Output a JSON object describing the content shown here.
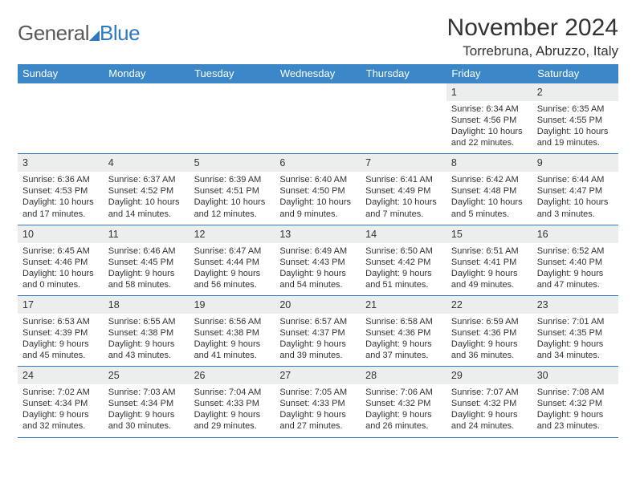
{
  "logo": {
    "word1": "General",
    "word2": "Blue",
    "accent_color": "#2f78c2"
  },
  "title": "November 2024",
  "location": "Torrebruna, Abruzzo, Italy",
  "header_bg": "#3b87c8",
  "header_fg": "#ffffff",
  "day_bg": "#eceded",
  "rule_color": "#2f78c2",
  "text_color": "#333333",
  "fontsize_title": 30,
  "fontsize_location": 17,
  "fontsize_dayheader": 13,
  "fontsize_daynum": 12.5,
  "fontsize_cell": 11,
  "day_headers": [
    "Sunday",
    "Monday",
    "Tuesday",
    "Wednesday",
    "Thursday",
    "Friday",
    "Saturday"
  ],
  "weeks": [
    [
      null,
      null,
      null,
      null,
      null,
      {
        "n": "1",
        "sunrise": "Sunrise: 6:34 AM",
        "sunset": "Sunset: 4:56 PM",
        "daylight": "Daylight: 10 hours and 22 minutes."
      },
      {
        "n": "2",
        "sunrise": "Sunrise: 6:35 AM",
        "sunset": "Sunset: 4:55 PM",
        "daylight": "Daylight: 10 hours and 19 minutes."
      }
    ],
    [
      {
        "n": "3",
        "sunrise": "Sunrise: 6:36 AM",
        "sunset": "Sunset: 4:53 PM",
        "daylight": "Daylight: 10 hours and 17 minutes."
      },
      {
        "n": "4",
        "sunrise": "Sunrise: 6:37 AM",
        "sunset": "Sunset: 4:52 PM",
        "daylight": "Daylight: 10 hours and 14 minutes."
      },
      {
        "n": "5",
        "sunrise": "Sunrise: 6:39 AM",
        "sunset": "Sunset: 4:51 PM",
        "daylight": "Daylight: 10 hours and 12 minutes."
      },
      {
        "n": "6",
        "sunrise": "Sunrise: 6:40 AM",
        "sunset": "Sunset: 4:50 PM",
        "daylight": "Daylight: 10 hours and 9 minutes."
      },
      {
        "n": "7",
        "sunrise": "Sunrise: 6:41 AM",
        "sunset": "Sunset: 4:49 PM",
        "daylight": "Daylight: 10 hours and 7 minutes."
      },
      {
        "n": "8",
        "sunrise": "Sunrise: 6:42 AM",
        "sunset": "Sunset: 4:48 PM",
        "daylight": "Daylight: 10 hours and 5 minutes."
      },
      {
        "n": "9",
        "sunrise": "Sunrise: 6:44 AM",
        "sunset": "Sunset: 4:47 PM",
        "daylight": "Daylight: 10 hours and 3 minutes."
      }
    ],
    [
      {
        "n": "10",
        "sunrise": "Sunrise: 6:45 AM",
        "sunset": "Sunset: 4:46 PM",
        "daylight": "Daylight: 10 hours and 0 minutes."
      },
      {
        "n": "11",
        "sunrise": "Sunrise: 6:46 AM",
        "sunset": "Sunset: 4:45 PM",
        "daylight": "Daylight: 9 hours and 58 minutes."
      },
      {
        "n": "12",
        "sunrise": "Sunrise: 6:47 AM",
        "sunset": "Sunset: 4:44 PM",
        "daylight": "Daylight: 9 hours and 56 minutes."
      },
      {
        "n": "13",
        "sunrise": "Sunrise: 6:49 AM",
        "sunset": "Sunset: 4:43 PM",
        "daylight": "Daylight: 9 hours and 54 minutes."
      },
      {
        "n": "14",
        "sunrise": "Sunrise: 6:50 AM",
        "sunset": "Sunset: 4:42 PM",
        "daylight": "Daylight: 9 hours and 51 minutes."
      },
      {
        "n": "15",
        "sunrise": "Sunrise: 6:51 AM",
        "sunset": "Sunset: 4:41 PM",
        "daylight": "Daylight: 9 hours and 49 minutes."
      },
      {
        "n": "16",
        "sunrise": "Sunrise: 6:52 AM",
        "sunset": "Sunset: 4:40 PM",
        "daylight": "Daylight: 9 hours and 47 minutes."
      }
    ],
    [
      {
        "n": "17",
        "sunrise": "Sunrise: 6:53 AM",
        "sunset": "Sunset: 4:39 PM",
        "daylight": "Daylight: 9 hours and 45 minutes."
      },
      {
        "n": "18",
        "sunrise": "Sunrise: 6:55 AM",
        "sunset": "Sunset: 4:38 PM",
        "daylight": "Daylight: 9 hours and 43 minutes."
      },
      {
        "n": "19",
        "sunrise": "Sunrise: 6:56 AM",
        "sunset": "Sunset: 4:38 PM",
        "daylight": "Daylight: 9 hours and 41 minutes."
      },
      {
        "n": "20",
        "sunrise": "Sunrise: 6:57 AM",
        "sunset": "Sunset: 4:37 PM",
        "daylight": "Daylight: 9 hours and 39 minutes."
      },
      {
        "n": "21",
        "sunrise": "Sunrise: 6:58 AM",
        "sunset": "Sunset: 4:36 PM",
        "daylight": "Daylight: 9 hours and 37 minutes."
      },
      {
        "n": "22",
        "sunrise": "Sunrise: 6:59 AM",
        "sunset": "Sunset: 4:36 PM",
        "daylight": "Daylight: 9 hours and 36 minutes."
      },
      {
        "n": "23",
        "sunrise": "Sunrise: 7:01 AM",
        "sunset": "Sunset: 4:35 PM",
        "daylight": "Daylight: 9 hours and 34 minutes."
      }
    ],
    [
      {
        "n": "24",
        "sunrise": "Sunrise: 7:02 AM",
        "sunset": "Sunset: 4:34 PM",
        "daylight": "Daylight: 9 hours and 32 minutes."
      },
      {
        "n": "25",
        "sunrise": "Sunrise: 7:03 AM",
        "sunset": "Sunset: 4:34 PM",
        "daylight": "Daylight: 9 hours and 30 minutes."
      },
      {
        "n": "26",
        "sunrise": "Sunrise: 7:04 AM",
        "sunset": "Sunset: 4:33 PM",
        "daylight": "Daylight: 9 hours and 29 minutes."
      },
      {
        "n": "27",
        "sunrise": "Sunrise: 7:05 AM",
        "sunset": "Sunset: 4:33 PM",
        "daylight": "Daylight: 9 hours and 27 minutes."
      },
      {
        "n": "28",
        "sunrise": "Sunrise: 7:06 AM",
        "sunset": "Sunset: 4:32 PM",
        "daylight": "Daylight: 9 hours and 26 minutes."
      },
      {
        "n": "29",
        "sunrise": "Sunrise: 7:07 AM",
        "sunset": "Sunset: 4:32 PM",
        "daylight": "Daylight: 9 hours and 24 minutes."
      },
      {
        "n": "30",
        "sunrise": "Sunrise: 7:08 AM",
        "sunset": "Sunset: 4:32 PM",
        "daylight": "Daylight: 9 hours and 23 minutes."
      }
    ]
  ]
}
